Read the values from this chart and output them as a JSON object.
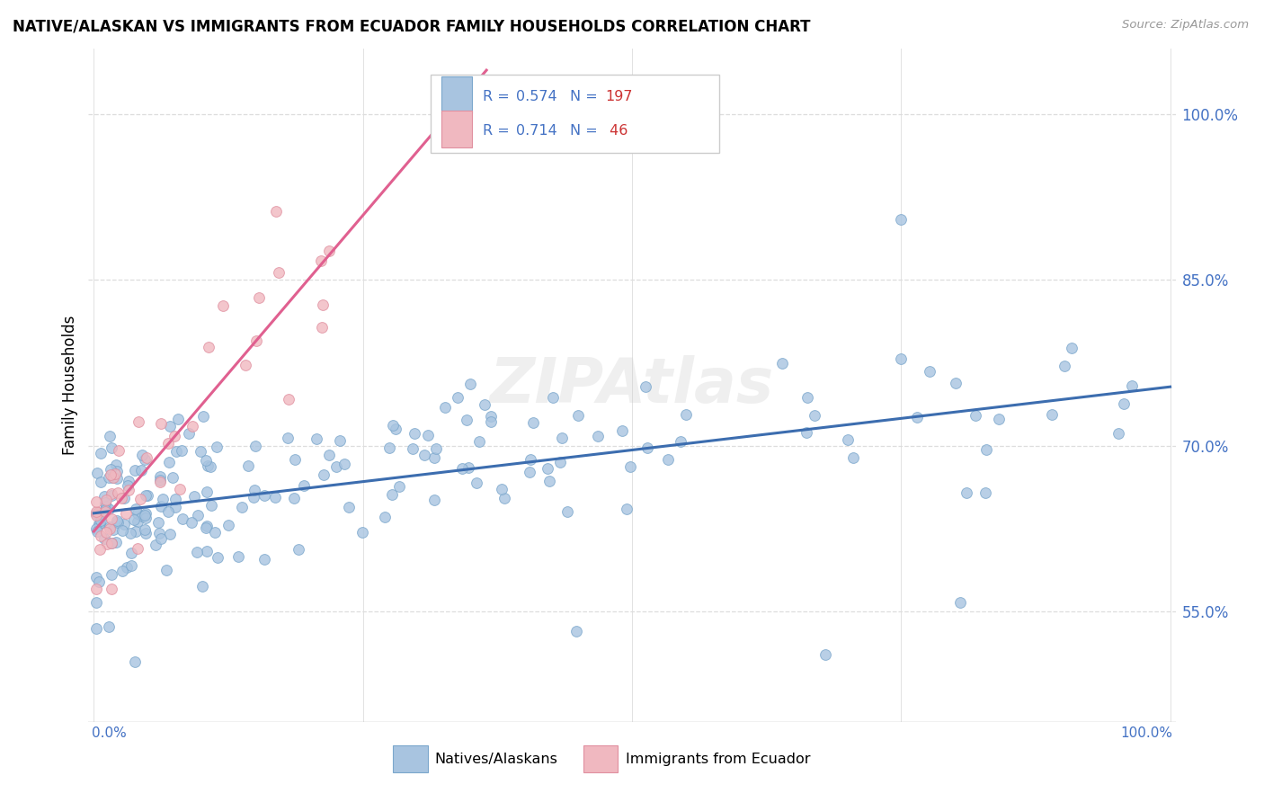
{
  "title": "NATIVE/ALASKAN VS IMMIGRANTS FROM ECUADOR FAMILY HOUSEHOLDS CORRELATION CHART",
  "source": "Source: ZipAtlas.com",
  "ylabel": "Family Households",
  "color_blue_fill": "#a8c4e0",
  "color_blue_edge": "#7ba7cc",
  "color_pink_fill": "#f0b8c0",
  "color_pink_edge": "#e090a0",
  "color_blue_line": "#3c6daf",
  "color_pink_line": "#e06090",
  "color_text_blue": "#4472c4",
  "color_text_red": "#cc3333",
  "legend_label1": "Natives/Alaskans",
  "legend_label2": "Immigrants from Ecuador",
  "r1_text": "R = ",
  "r1_val": "0.574",
  "n1_text": "  N = ",
  "n1_val": "197",
  "r2_text": "R = ",
  "r2_val": "0.714",
  "n2_text": "  N = ",
  "n2_val": " 46",
  "background_color": "#ffffff",
  "grid_color": "#dddddd",
  "watermark": "ZIPAtlas",
  "ytick_vals": [
    0.55,
    0.7,
    0.85,
    1.0
  ],
  "ytick_labels": [
    "55.0%",
    "70.0%",
    "85.0%",
    "100.0%"
  ],
  "xlim": [
    -0.005,
    1.005
  ],
  "ylim": [
    0.45,
    1.06
  ]
}
